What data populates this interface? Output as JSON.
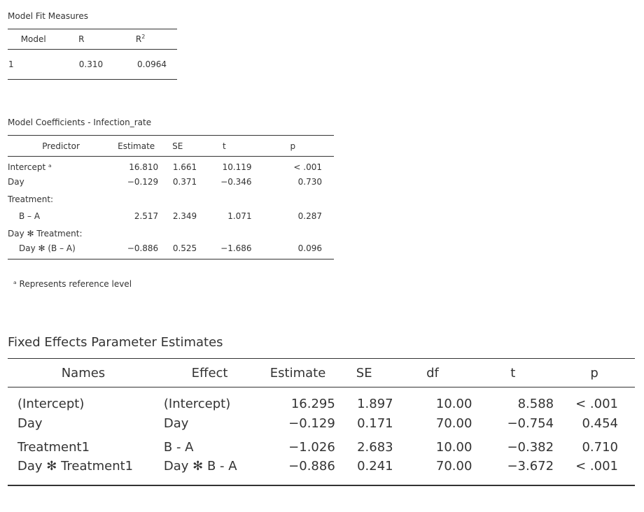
{
  "model_fit": {
    "title": "Model Fit Measures",
    "headers": {
      "model": "Model",
      "r": "R",
      "r2_base": "R",
      "r2_sup": "2"
    },
    "rows": [
      {
        "model": "1",
        "r": "0.310",
        "r2": "0.0964"
      }
    ]
  },
  "coefficients": {
    "title": "Model Coefficients - Infection_rate",
    "headers": {
      "predictor": "Predictor",
      "estimate": "Estimate",
      "se": "SE",
      "t": "t",
      "p": "p"
    },
    "rows": [
      {
        "predictor": "Intercept ᵃ",
        "estimate": "16.810",
        "se": "1.661",
        "t": "10.119",
        "p": "< .001"
      },
      {
        "predictor": "Day",
        "estimate": "−0.129",
        "se": "0.371",
        "t": "−0.346",
        "p": "0.730"
      },
      {
        "predictor": "Treatment:",
        "estimate": "",
        "se": "",
        "t": "",
        "p": ""
      },
      {
        "predictor": "B – A",
        "estimate": "2.517",
        "se": "2.349",
        "t": "1.071",
        "p": "0.287"
      },
      {
        "predictor": "Day ✻ Treatment:",
        "estimate": "",
        "se": "",
        "t": "",
        "p": ""
      },
      {
        "predictor": "Day ✻ (B – A)",
        "estimate": "−0.886",
        "se": "0.525",
        "t": "−1.686",
        "p": "0.096"
      }
    ],
    "note": "ᵃ Represents reference level"
  },
  "fixed_effects": {
    "title": "Fixed Effects Parameter Estimates",
    "headers": {
      "names": "Names",
      "effect": "Effect",
      "estimate": "Estimate",
      "se": "SE",
      "df": "df",
      "t": "t",
      "p": "p"
    },
    "rows": [
      {
        "names": "(Intercept)",
        "effect": "(Intercept)",
        "estimate": "16.295",
        "se": "1.897",
        "df": "10.00",
        "t": "8.588",
        "p": "< .001"
      },
      {
        "names": "Day",
        "effect": "Day",
        "estimate": "−0.129",
        "se": "0.171",
        "df": "70.00",
        "t": "−0.754",
        "p": "0.454"
      },
      {
        "names": "Treatment1",
        "effect": "B - A",
        "estimate": "−1.026",
        "se": "2.683",
        "df": "10.00",
        "t": "−0.382",
        "p": "0.710"
      },
      {
        "names": "Day ✻ Treatment1",
        "effect": "Day ✻ B - A",
        "estimate": "−0.886",
        "se": "0.241",
        "df": "70.00",
        "t": "−3.672",
        "p": "< .001"
      }
    ]
  }
}
